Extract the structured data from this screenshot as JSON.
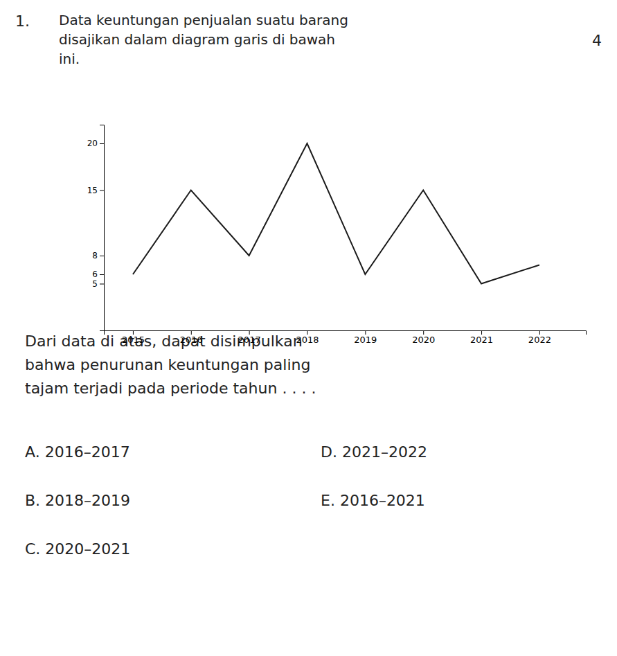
{
  "chart_data": {
    "type": "line",
    "title": [
      "Data keuntungan penjualan suatu barang",
      "disajikan dalam diagram garis di bawah",
      "ini."
    ],
    "x": [
      2015,
      2016,
      2017,
      2018,
      2019,
      2020,
      2021,
      2022
    ],
    "values": [
      6,
      15,
      8,
      20,
      6,
      15,
      5,
      7
    ],
    "color": "#1a1a1a",
    "xlim": [
      2014.5,
      2022.8
    ],
    "xticks": [
      2015,
      2016,
      2017,
      2018,
      2019,
      2020,
      2021,
      2022
    ],
    "ylim": [
      0,
      22
    ],
    "yticks": [
      5,
      6,
      8,
      15,
      20
    ],
    "grid": false,
    "annotations": [
      "1.",
      "4",
      "Dari data di atas, dapat disimpulkan",
      "bahwa penurunan keuntungan paling",
      "tajam terjadi pada periode tahun . . . .",
      "A.   2016–2017",
      "B.   2018–2019",
      "C.   2020–2021",
      "D.   2021–2022",
      "E.   2016–2021"
    ]
  }
}
